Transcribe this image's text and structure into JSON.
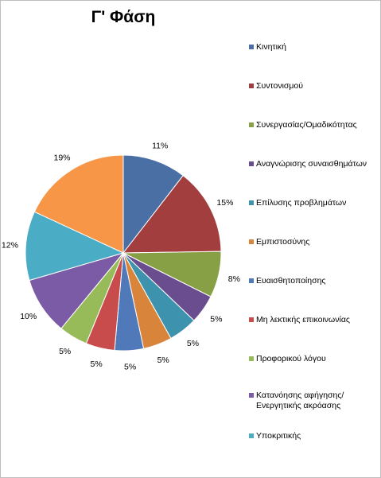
{
  "chart_data": {
    "type": "pie",
    "title": "Γ' Φάση",
    "categories": [
      "Κινητική",
      "Συντονισμού",
      "Συνεργασίας/Ομαδικότητας",
      "Αναγνώρισης συναισθημάτων",
      "Επίλυσης προβλημάτων",
      "Εμπιστοσύνης",
      "Ευαισθητοποίησης",
      "Μη λεκτικής επικοινωνίας",
      "Προφορικού λόγου",
      "Κατανόησης αφήγησης/Ενεργητικής ακρόασης",
      "Υποκριτικής",
      ""
    ],
    "values": [
      11,
      15,
      8,
      5,
      5,
      5,
      5,
      5,
      5,
      10,
      12,
      19
    ],
    "labels": [
      "11%",
      "15%",
      "8%",
      "5%",
      "5%",
      "5%",
      "5%",
      "5%",
      "5%",
      "10%",
      "12%",
      "19%"
    ],
    "colors": [
      "#4a6fa5",
      "#a33e3e",
      "#87a046",
      "#6a4d8f",
      "#3d93ad",
      "#d9843b",
      "#5079b9",
      "#c84c4c",
      "#98bb59",
      "#7c5ba6",
      "#4bacc6",
      "#f79646"
    ],
    "legend": "right"
  }
}
